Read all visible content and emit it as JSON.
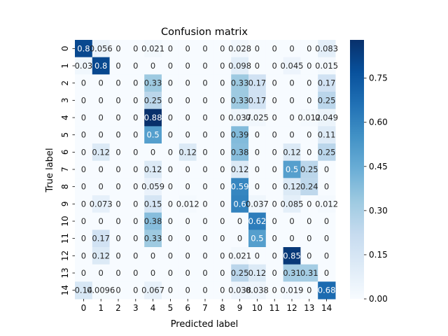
{
  "chart_data": {
    "type": "heatmap",
    "title": "Confusion matrix",
    "xlabel": "Predicted label",
    "ylabel": "True label",
    "x_categories": [
      "0",
      "1",
      "2",
      "3",
      "4",
      "5",
      "6",
      "7",
      "8",
      "9",
      "10",
      "11",
      "12",
      "13",
      "14"
    ],
    "y_categories": [
      "0",
      "1",
      "2",
      "3",
      "4",
      "5",
      "6",
      "7",
      "8",
      "9",
      "10",
      "11",
      "12",
      "13",
      "14"
    ],
    "values": [
      [
        0.8,
        0.056,
        0,
        0,
        0.021,
        0,
        0,
        0,
        0,
        0.028,
        0,
        0,
        0,
        0,
        0.083
      ],
      [
        0.03,
        0.8,
        0,
        0,
        0,
        0,
        0,
        0,
        0,
        0.098,
        0,
        0,
        0.045,
        0,
        0.015
      ],
      [
        0,
        0,
        0,
        0,
        0.33,
        0,
        0,
        0,
        0,
        0.33,
        0.17,
        0,
        0,
        0,
        0.17
      ],
      [
        0,
        0,
        0,
        0,
        0.25,
        0,
        0,
        0,
        0,
        0.33,
        0.17,
        0,
        0,
        0,
        0.25
      ],
      [
        0,
        0,
        0,
        0,
        0.88,
        0,
        0,
        0,
        0,
        0.037,
        0.025,
        0,
        0,
        0.012,
        0.049
      ],
      [
        0,
        0,
        0,
        0,
        0.5,
        0,
        0,
        0,
        0,
        0.39,
        0,
        0,
        0,
        0,
        0.11
      ],
      [
        0,
        0.12,
        0,
        0,
        0,
        0,
        0.12,
        0,
        0,
        0.38,
        0,
        0,
        0.12,
        0,
        0.25
      ],
      [
        0,
        0,
        0,
        0,
        0.12,
        0,
        0,
        0,
        0,
        0.12,
        0,
        0,
        0.5,
        0.25,
        0
      ],
      [
        0,
        0,
        0,
        0,
        0.059,
        0,
        0,
        0,
        0,
        0.59,
        0,
        0,
        0.12,
        0.24,
        0
      ],
      [
        0,
        0.073,
        0,
        0,
        0.15,
        0,
        0.012,
        0,
        0,
        0.6,
        0.037,
        0,
        0.085,
        0,
        0.012
      ],
      [
        0,
        0,
        0,
        0,
        0.38,
        0,
        0,
        0,
        0,
        0,
        0.62,
        0,
        0,
        0,
        0
      ],
      [
        0,
        0.17,
        0,
        0,
        0.33,
        0,
        0,
        0,
        0,
        0,
        0.5,
        0,
        0,
        0,
        0
      ],
      [
        0,
        0.12,
        0,
        0,
        0,
        0,
        0,
        0,
        0,
        0.021,
        0,
        0,
        0.85,
        0,
        0
      ],
      [
        0,
        0,
        0,
        0,
        0,
        0,
        0,
        0,
        0,
        0.25,
        0.12,
        0,
        0.31,
        0.31,
        0
      ],
      [
        0.14,
        0.0096,
        0,
        0,
        0.067,
        0,
        0,
        0,
        0,
        0.038,
        0.038,
        0,
        0.019,
        0,
        0.68
      ]
    ],
    "value_range": [
      0,
      0.88
    ],
    "colormap": "Blues",
    "colors": {
      "low": "#f7fbff",
      "high": "#08306b"
    },
    "colorbar": {
      "ticks": [
        0.0,
        0.15,
        0.3,
        0.45,
        0.6,
        0.75
      ],
      "tick_labels": [
        "0.00",
        "0.15",
        "0.30",
        "0.45",
        "0.60",
        "0.75"
      ]
    },
    "cell_labels": [
      [
        "0.8",
        "0.056",
        "0",
        "0",
        "0.021",
        "0",
        "0",
        "0",
        "0",
        "0.028",
        "0",
        "0",
        "0",
        "0",
        "0.083"
      ],
      [
        "0.03",
        "0.8",
        "0",
        "0",
        "0",
        "0",
        "0",
        "0",
        "0",
        "0.098",
        "0",
        "0",
        "0.045",
        "0",
        "0.015"
      ],
      [
        "0",
        "0",
        "0",
        "0",
        "0.33",
        "0",
        "0",
        "0",
        "0",
        "0.33",
        "0.17",
        "0",
        "0",
        "0",
        "0.17"
      ],
      [
        "0",
        "0",
        "0",
        "0",
        "0.25",
        "0",
        "0",
        "0",
        "0",
        "0.33",
        "0.17",
        "0",
        "0",
        "0",
        "0.25"
      ],
      [
        "0",
        "0",
        "0",
        "0",
        "0.88",
        "0",
        "0",
        "0",
        "0",
        "0.037",
        "0.025",
        "0",
        "0",
        "0.012",
        "0.049"
      ],
      [
        "0",
        "0",
        "0",
        "0",
        "0.5",
        "0",
        "0",
        "0",
        "0",
        "0.39",
        "0",
        "0",
        "0",
        "0",
        "0.11"
      ],
      [
        "0",
        "0.12",
        "0",
        "0",
        "0",
        "0",
        "0.12",
        "0",
        "0",
        "0.38",
        "0",
        "0",
        "0.12",
        "0",
        "0.25"
      ],
      [
        "0",
        "0",
        "0",
        "0",
        "0.12",
        "0",
        "0",
        "0",
        "0",
        "0.12",
        "0",
        "0",
        "0.5",
        "0.25",
        "0"
      ],
      [
        "0",
        "0",
        "0",
        "0",
        "0.059",
        "0",
        "0",
        "0",
        "0",
        "0.59",
        "0",
        "0",
        "0.12",
        "0.24",
        "0"
      ],
      [
        "0",
        "0.073",
        "0",
        "0",
        "0.15",
        "0",
        "0.012",
        "0",
        "0",
        "0.6",
        "0.037",
        "0",
        "0.085",
        "0",
        "0.012"
      ],
      [
        "0",
        "0",
        "0",
        "0",
        "0.38",
        "0",
        "0",
        "0",
        "0",
        "0",
        "0.62",
        "0",
        "0",
        "0",
        "0"
      ],
      [
        "0",
        "0.17",
        "0",
        "0",
        "0.33",
        "0",
        "0",
        "0",
        "0",
        "0",
        "0.5",
        "0",
        "0",
        "0",
        "0"
      ],
      [
        "0",
        "0.12",
        "0",
        "0",
        "0",
        "0",
        "0",
        "0",
        "0",
        "0.021",
        "0",
        "0",
        "0.85",
        "0",
        "0"
      ],
      [
        "0",
        "0",
        "0",
        "0",
        "0",
        "0",
        "0",
        "0",
        "0",
        "0.25",
        "0.12",
        "0",
        "0.31",
        "0.31",
        "0"
      ],
      [
        "0.14",
        "0.0096",
        "0",
        "0",
        "0.067",
        "0",
        "0",
        "0",
        "0",
        "0.038",
        "0.038",
        "0",
        "0.019",
        "0",
        "0.68"
      ]
    ]
  }
}
